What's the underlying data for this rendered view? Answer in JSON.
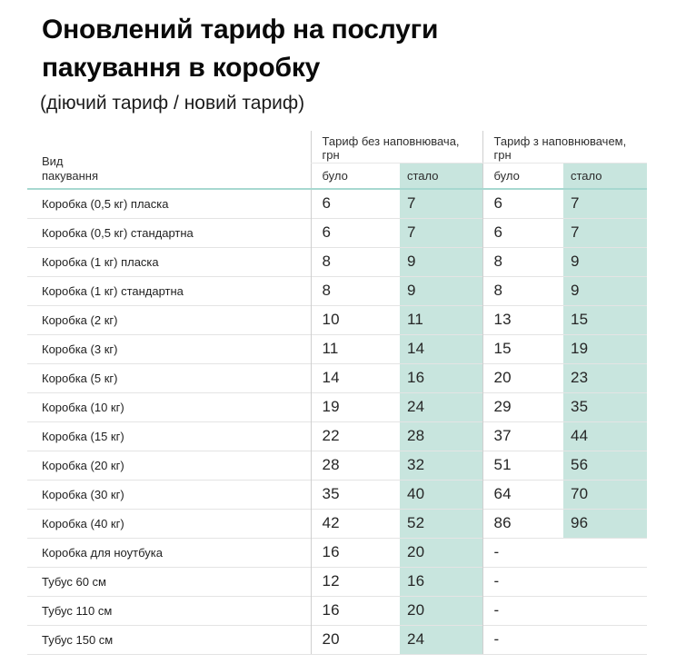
{
  "header": {
    "title_line1": "Оновлений тариф на послуги",
    "title_line2": "пакування в коробку",
    "subtitle": "(діючий тариф / новий тариф)"
  },
  "table": {
    "type_header_line1": "Вид",
    "type_header_line2": "пакування",
    "group_no_filler": "Тариф без наповнювача, грн",
    "group_with_filler": "Тариф з наповнювачем, грн",
    "sub_was": "було",
    "sub_became": "стало",
    "rows": [
      {
        "name": "Коробка (0,5 кг) пласка",
        "no_filler_was": "6",
        "no_filler_became": "7",
        "filler_was": "6",
        "filler_became": "7",
        "filler_highlight": true
      },
      {
        "name": "Коробка (0,5 кг) стандартна",
        "no_filler_was": "6",
        "no_filler_became": "7",
        "filler_was": "6",
        "filler_became": "7",
        "filler_highlight": true
      },
      {
        "name": "Коробка (1 кг) пласка",
        "no_filler_was": "8",
        "no_filler_became": "9",
        "filler_was": "8",
        "filler_became": "9",
        "filler_highlight": true
      },
      {
        "name": "Коробка (1 кг) стандартна",
        "no_filler_was": "8",
        "no_filler_became": "9",
        "filler_was": "8",
        "filler_became": "9",
        "filler_highlight": true
      },
      {
        "name": "Коробка (2 кг)",
        "no_filler_was": "10",
        "no_filler_became": "11",
        "filler_was": "13",
        "filler_became": "15",
        "filler_highlight": true
      },
      {
        "name": "Коробка (3 кг)",
        "no_filler_was": "11",
        "no_filler_became": "14",
        "filler_was": "15",
        "filler_became": "19",
        "filler_highlight": true
      },
      {
        "name": "Коробка (5 кг)",
        "no_filler_was": "14",
        "no_filler_became": "16",
        "filler_was": "20",
        "filler_became": "23",
        "filler_highlight": true
      },
      {
        "name": "Коробка (10 кг)",
        "no_filler_was": "19",
        "no_filler_became": "24",
        "filler_was": "29",
        "filler_became": "35",
        "filler_highlight": true
      },
      {
        "name": "Коробка (15 кг)",
        "no_filler_was": "22",
        "no_filler_became": "28",
        "filler_was": "37",
        "filler_became": "44",
        "filler_highlight": true
      },
      {
        "name": "Коробка (20 кг)",
        "no_filler_was": "28",
        "no_filler_became": "32",
        "filler_was": "51",
        "filler_became": "56",
        "filler_highlight": true
      },
      {
        "name": "Коробка (30 кг)",
        "no_filler_was": "35",
        "no_filler_became": "40",
        "filler_was": "64",
        "filler_became": "70",
        "filler_highlight": true
      },
      {
        "name": "Коробка (40 кг)",
        "no_filler_was": "42",
        "no_filler_became": "52",
        "filler_was": "86",
        "filler_became": "96",
        "filler_highlight": true
      },
      {
        "name": "Коробка для ноутбука",
        "no_filler_was": "16",
        "no_filler_became": "20",
        "filler_was": "-",
        "filler_became": "",
        "filler_highlight": false
      },
      {
        "name": "Тубус 60 см",
        "no_filler_was": "12",
        "no_filler_became": "16",
        "filler_was": "-",
        "filler_became": "",
        "filler_highlight": false
      },
      {
        "name": "Тубус 110 см",
        "no_filler_was": "16",
        "no_filler_became": "20",
        "filler_was": "-",
        "filler_became": "",
        "filler_highlight": false
      },
      {
        "name": "Тубус 150 см",
        "no_filler_was": "20",
        "no_filler_became": "24",
        "filler_was": "-",
        "filler_became": "",
        "filler_highlight": false
      }
    ],
    "colors": {
      "highlight_bg": "#c8e5de",
      "header_underline": "#a7d8d0",
      "column_divider": "#cfcfcf",
      "row_separator": "#e4e4e4"
    }
  }
}
